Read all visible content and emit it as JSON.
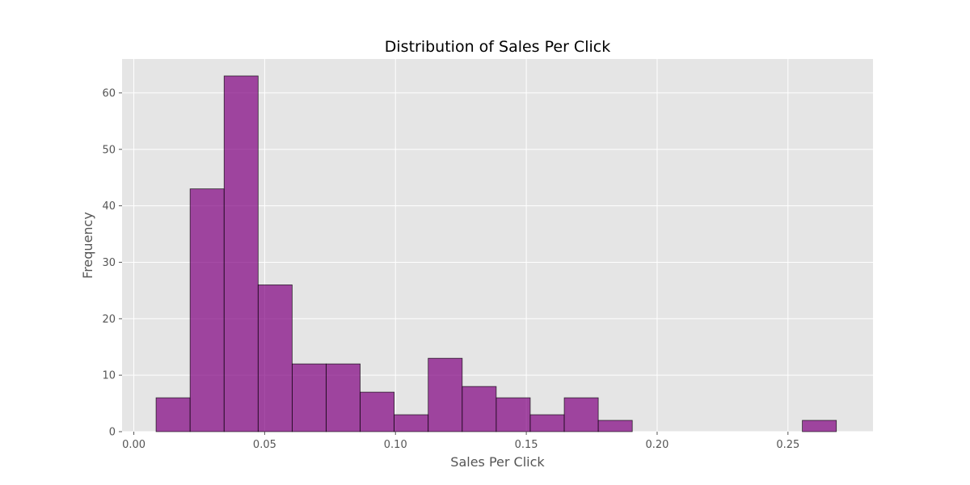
{
  "chart_data": {
    "type": "bar",
    "title": "Distribution of Sales Per Click",
    "xlabel": "Sales Per Click",
    "ylabel": "Frequency",
    "xlim": [
      -0.0045,
      0.2825
    ],
    "ylim": [
      0,
      66
    ],
    "x_ticks": [
      0.0,
      0.05,
      0.1,
      0.15,
      0.2,
      0.25
    ],
    "x_tick_labels": [
      "0.00",
      "0.05",
      "0.10",
      "0.15",
      "0.20",
      "0.25"
    ],
    "y_ticks": [
      0,
      10,
      20,
      30,
      40,
      50,
      60
    ],
    "y_tick_labels": [
      "0",
      "10",
      "20",
      "30",
      "40",
      "50",
      "60"
    ],
    "grid": true,
    "bins": [
      {
        "x0": 0.0085,
        "x1": 0.0215,
        "count": 6
      },
      {
        "x0": 0.0215,
        "x1": 0.0345,
        "count": 43
      },
      {
        "x0": 0.0345,
        "x1": 0.0475,
        "count": 63
      },
      {
        "x0": 0.0475,
        "x1": 0.0605,
        "count": 26
      },
      {
        "x0": 0.0605,
        "x1": 0.0735,
        "count": 12
      },
      {
        "x0": 0.0735,
        "x1": 0.0865,
        "count": 12
      },
      {
        "x0": 0.0865,
        "x1": 0.0995,
        "count": 7
      },
      {
        "x0": 0.0995,
        "x1": 0.1125,
        "count": 3
      },
      {
        "x0": 0.1125,
        "x1": 0.1255,
        "count": 13
      },
      {
        "x0": 0.1255,
        "x1": 0.1385,
        "count": 8
      },
      {
        "x0": 0.1385,
        "x1": 0.1515,
        "count": 6
      },
      {
        "x0": 0.1515,
        "x1": 0.1645,
        "count": 3
      },
      {
        "x0": 0.1645,
        "x1": 0.1775,
        "count": 6
      },
      {
        "x0": 0.1775,
        "x1": 0.1905,
        "count": 2
      },
      {
        "x0": 0.2555,
        "x1": 0.2685,
        "count": 2
      }
    ],
    "colors": {
      "bar_fill": "#800080",
      "bar_edge": "#000000",
      "plot_background": "#e5e5e5",
      "grid": "#ffffff"
    }
  }
}
